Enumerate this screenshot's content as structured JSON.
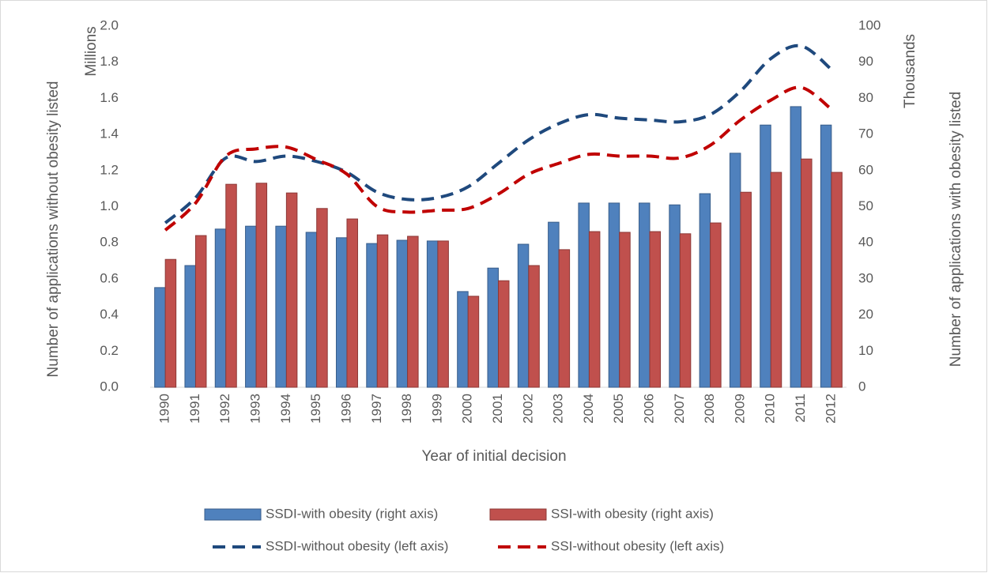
{
  "chart_data": {
    "type": "bar",
    "categories": [
      "1990",
      "1991",
      "1992",
      "1993",
      "1994",
      "1995",
      "1996",
      "1997",
      "1998",
      "1999",
      "2000",
      "2001",
      "2002",
      "2003",
      "2004",
      "2005",
      "2006",
      "2007",
      "2008",
      "2009",
      "2010",
      "2011",
      "2012"
    ],
    "series": [
      {
        "name": "SSDI-with obesity (right axis)",
        "type": "bar",
        "axis": "y2",
        "color": "#4f81bd",
        "values": [
          27.6,
          33.7,
          43.8,
          44.6,
          44.6,
          42.9,
          41.4,
          39.8,
          40.7,
          40.5,
          26.5,
          33.0,
          39.6,
          45.7,
          51.0,
          51.0,
          51.0,
          50.5,
          53.6,
          64.8,
          72.6,
          77.7,
          72.6
        ]
      },
      {
        "name": "SSI-with obesity (right axis)",
        "type": "bar",
        "axis": "y2",
        "color": "#c0504d",
        "values": [
          35.4,
          42.0,
          56.2,
          56.5,
          53.8,
          49.5,
          46.6,
          42.2,
          41.8,
          40.5,
          25.2,
          29.5,
          33.7,
          38.1,
          43.1,
          42.9,
          43.1,
          42.5,
          45.5,
          54.0,
          59.5,
          63.2,
          59.5
        ]
      },
      {
        "name": "SSDI-without obesity (left axis)",
        "type": "line",
        "dashed": true,
        "color": "#1f497d",
        "values": [
          0.91,
          1.05,
          1.27,
          1.25,
          1.28,
          1.25,
          1.19,
          1.08,
          1.04,
          1.05,
          1.11,
          1.24,
          1.37,
          1.46,
          1.51,
          1.49,
          1.48,
          1.47,
          1.51,
          1.64,
          1.82,
          1.89,
          1.76
        ]
      },
      {
        "name": "SSI-without obesity (left axis)",
        "type": "line",
        "dashed": true,
        "color": "#c00000",
        "values": [
          0.87,
          1.02,
          1.28,
          1.32,
          1.33,
          1.26,
          1.18,
          1.0,
          0.97,
          0.98,
          0.99,
          1.07,
          1.18,
          1.24,
          1.29,
          1.28,
          1.28,
          1.27,
          1.34,
          1.48,
          1.59,
          1.66,
          1.54
        ]
      }
    ],
    "xlabel": "Year of initial decision",
    "ylabel": "Number of applications without obesity listed",
    "yunit": "Millions",
    "y2label": "Number of applications with obesity listed",
    "y2unit": "Thousands",
    "ylim": [
      0,
      2
    ],
    "yticks": [
      {
        "value": 0,
        "label": "0.0"
      },
      0.2,
      0.4,
      0.6,
      0.8,
      {
        "value": 1,
        "label": "1.0"
      },
      1.2,
      1.4,
      1.6,
      1.8,
      {
        "value": 2,
        "label": "2.0"
      }
    ],
    "y2lim": [
      0,
      100
    ],
    "y2ticks": [
      0,
      10,
      20,
      30,
      40,
      50,
      60,
      70,
      80,
      90,
      100
    ],
    "grid": false,
    "legend": "bottom"
  }
}
